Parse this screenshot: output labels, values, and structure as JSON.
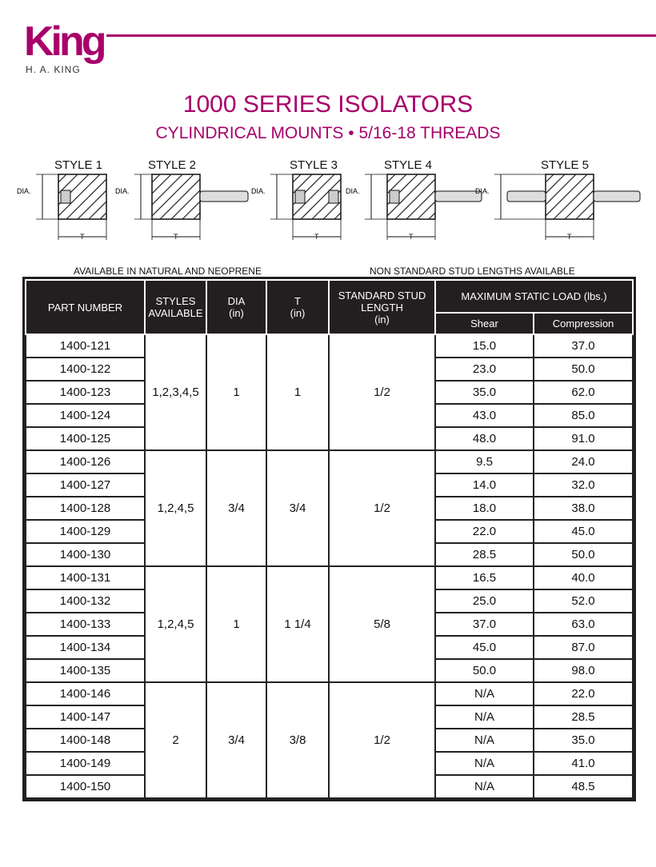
{
  "brand": {
    "logo_text": "King",
    "name": "H. A. KING",
    "color": "#a8006a"
  },
  "title": "1000 SERIES ISOLATORS",
  "subtitle": "CYLINDRICAL MOUNTS • 5/16-18 THREADS",
  "styles": [
    "STYLE 1",
    "STYLE 2",
    "STYLE 3",
    "STYLE 4",
    "STYLE 5"
  ],
  "dim_labels": {
    "dia": "DIA.",
    "t": "T"
  },
  "notes": {
    "left": "AVAILABLE IN NATURAL AND NEOPRENE",
    "right": "NON STANDARD STUD LENGTHS AVAILABLE"
  },
  "table": {
    "headers": {
      "part": "PART NUMBER",
      "styles": "STYLES AVAILABLE",
      "dia": "DIA",
      "dia_unit": "(in)",
      "t": "T",
      "t_unit": "(in)",
      "stud": "STANDARD STUD LENGTH",
      "stud_unit": "(in)",
      "load": "MAXIMUM STATIC LOAD (lbs.)",
      "shear": "Shear",
      "compression": "Compression"
    },
    "groups": [
      {
        "styles": "1,2,3,4,5",
        "dia": "1",
        "t": "1",
        "stud": "1/2",
        "rows": [
          [
            "1400-121",
            "15.0",
            "37.0"
          ],
          [
            "1400-122",
            "23.0",
            "50.0"
          ],
          [
            "1400-123",
            "35.0",
            "62.0"
          ],
          [
            "1400-124",
            "43.0",
            "85.0"
          ],
          [
            "1400-125",
            "48.0",
            "91.0"
          ]
        ]
      },
      {
        "styles": "1,2,4,5",
        "dia": "3/4",
        "t": "3/4",
        "stud": "1/2",
        "rows": [
          [
            "1400-126",
            "9.5",
            "24.0"
          ],
          [
            "1400-127",
            "14.0",
            "32.0"
          ],
          [
            "1400-128",
            "18.0",
            "38.0"
          ],
          [
            "1400-129",
            "22.0",
            "45.0"
          ],
          [
            "1400-130",
            "28.5",
            "50.0"
          ]
        ]
      },
      {
        "styles": "1,2,4,5",
        "dia": "1",
        "t": "1 1/4",
        "stud": "5/8",
        "rows": [
          [
            "1400-131",
            "16.5",
            "40.0"
          ],
          [
            "1400-132",
            "25.0",
            "52.0"
          ],
          [
            "1400-133",
            "37.0",
            "63.0"
          ],
          [
            "1400-134",
            "45.0",
            "87.0"
          ],
          [
            "1400-135",
            "50.0",
            "98.0"
          ]
        ]
      },
      {
        "styles": "2",
        "dia": "3/4",
        "t": "3/8",
        "stud": "1/2",
        "rows": [
          [
            "1400-146",
            "N/A",
            "22.0"
          ],
          [
            "1400-147",
            "N/A",
            "28.5"
          ],
          [
            "1400-148",
            "N/A",
            "35.0"
          ],
          [
            "1400-149",
            "N/A",
            "41.0"
          ],
          [
            "1400-150",
            "N/A",
            "48.5"
          ]
        ]
      }
    ]
  }
}
